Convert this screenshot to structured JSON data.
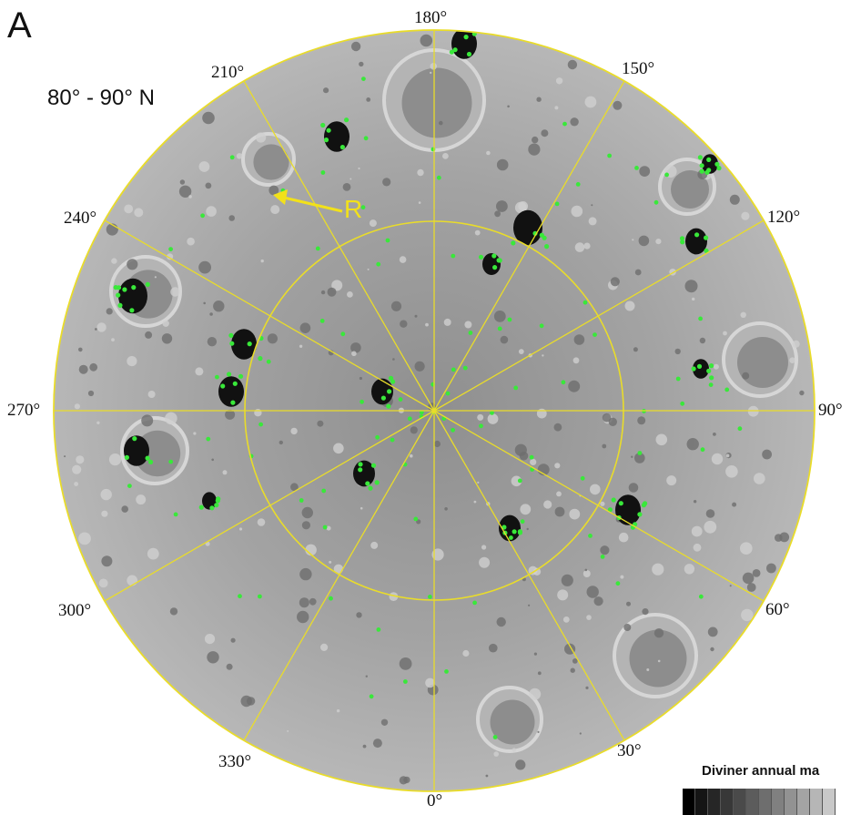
{
  "figure": {
    "panel_letter": "A",
    "latitude_range": "80° - 90° N",
    "feature_label": "R"
  },
  "longitude_labels": {
    "lon_0": "0°",
    "lon_30": "30°",
    "lon_60": "60°",
    "lon_90": "90°",
    "lon_120": "120°",
    "lon_150": "150°",
    "lon_180": "180°",
    "lon_210": "210°",
    "lon_240": "240°",
    "lon_270": "270°",
    "lon_300": "300°",
    "lon_330": "330°"
  },
  "legend": {
    "title": "Diviner annual ma",
    "swatches": [
      "#000000",
      "#151515",
      "#262626",
      "#383838",
      "#4a4a4a",
      "#5c5c5c",
      "#6e6e6e",
      "#808080",
      "#929292",
      "#a4a4a4",
      "#b6b6b6",
      "#c8c8c8"
    ]
  },
  "colors": {
    "grid": "#e9dc2a",
    "ice_deposits": "#39e83a",
    "terrain": "#9c9c9c",
    "pointer": "#f2e11a"
  }
}
